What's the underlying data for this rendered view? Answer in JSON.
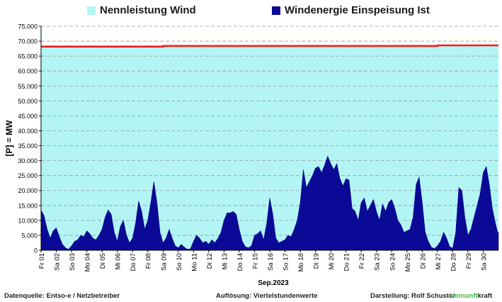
{
  "chart_data": {
    "type": "area",
    "ylabel": "[P] = MW",
    "xlabel": "Sep.2023",
    "ylim": [
      0,
      75000
    ],
    "y_ticks": [
      "0",
      "5.000",
      "10.000",
      "15.000",
      "20.000",
      "25.000",
      "30.000",
      "35.000",
      "40.000",
      "45.000",
      "50.000",
      "55.000",
      "60.000",
      "65.000",
      "70.000",
      "75.000"
    ],
    "x_tick_labels": [
      "Fr 01",
      "Sa 02",
      "So 03",
      "Mo 04",
      "Di 05",
      "Mi 06",
      "Do 07",
      "Fr 08",
      "Sa 09",
      "So 10",
      "Mo 11",
      "Di 12",
      "Mi 13",
      "Do 14",
      "Fr 15",
      "Sa 16",
      "So 17",
      "Mo 18",
      "Di 19",
      "Mi 20",
      "Do 21",
      "Fr 22",
      "Sa 23",
      "So 24",
      "Mo 25",
      "Di 26",
      "Mi 27",
      "Do 28",
      "Fr 29",
      "Sa 30"
    ],
    "xlim_days": [
      1,
      31
    ],
    "grid": true,
    "legend_position": "top",
    "series": [
      {
        "name": "Nennleistung Wind",
        "color": "#b3f5f5",
        "line_color": "#ff1a1a",
        "points": [
          [
            1,
            68200
          ],
          [
            9,
            68200
          ],
          [
            9,
            68400
          ],
          [
            27,
            68400
          ],
          [
            27,
            68600
          ],
          [
            31,
            68600
          ]
        ]
      },
      {
        "name": "Windenergie Einspeisung Ist",
        "color": "#0a0a96",
        "points": [
          [
            1.0,
            13500
          ],
          [
            1.2,
            11500
          ],
          [
            1.4,
            7000
          ],
          [
            1.6,
            4000
          ],
          [
            1.8,
            6500
          ],
          [
            2.0,
            7500
          ],
          [
            2.2,
            4500
          ],
          [
            2.4,
            2000
          ],
          [
            2.6,
            800
          ],
          [
            2.8,
            300
          ],
          [
            3.0,
            1500
          ],
          [
            3.2,
            3000
          ],
          [
            3.4,
            3500
          ],
          [
            3.6,
            5000
          ],
          [
            3.8,
            4500
          ],
          [
            4.0,
            6500
          ],
          [
            4.2,
            5500
          ],
          [
            4.4,
            4000
          ],
          [
            4.6,
            3500
          ],
          [
            4.8,
            5000
          ],
          [
            5.0,
            7000
          ],
          [
            5.2,
            11000
          ],
          [
            5.4,
            13500
          ],
          [
            5.6,
            12000
          ],
          [
            5.8,
            6000
          ],
          [
            6.0,
            3000
          ],
          [
            6.2,
            8000
          ],
          [
            6.4,
            10000
          ],
          [
            6.6,
            5000
          ],
          [
            6.8,
            2500
          ],
          [
            7.0,
            4000
          ],
          [
            7.2,
            9000
          ],
          [
            7.4,
            16500
          ],
          [
            7.6,
            13000
          ],
          [
            7.8,
            7000
          ],
          [
            8.0,
            10000
          ],
          [
            8.2,
            16000
          ],
          [
            8.4,
            23000
          ],
          [
            8.6,
            16000
          ],
          [
            8.8,
            6000
          ],
          [
            9.0,
            2500
          ],
          [
            9.2,
            4000
          ],
          [
            9.4,
            7000
          ],
          [
            9.6,
            4000
          ],
          [
            9.8,
            1500
          ],
          [
            10.0,
            800
          ],
          [
            10.2,
            2000
          ],
          [
            10.4,
            1000
          ],
          [
            10.6,
            300
          ],
          [
            10.8,
            500
          ],
          [
            11.0,
            3000
          ],
          [
            11.2,
            5000
          ],
          [
            11.4,
            4000
          ],
          [
            11.6,
            2500
          ],
          [
            11.8,
            3000
          ],
          [
            12.0,
            2000
          ],
          [
            12.2,
            3500
          ],
          [
            12.4,
            2500
          ],
          [
            12.6,
            4000
          ],
          [
            12.8,
            6000
          ],
          [
            13.0,
            10000
          ],
          [
            13.2,
            12500
          ],
          [
            13.4,
            12500
          ],
          [
            13.6,
            13000
          ],
          [
            13.8,
            12000
          ],
          [
            14.0,
            7000
          ],
          [
            14.2,
            3000
          ],
          [
            14.4,
            1200
          ],
          [
            14.6,
            800
          ],
          [
            14.8,
            1500
          ],
          [
            15.0,
            5000
          ],
          [
            15.2,
            5500
          ],
          [
            15.4,
            6500
          ],
          [
            15.6,
            3500
          ],
          [
            15.8,
            9000
          ],
          [
            16.0,
            17500
          ],
          [
            16.2,
            12000
          ],
          [
            16.4,
            4000
          ],
          [
            16.6,
            2500
          ],
          [
            16.8,
            3000
          ],
          [
            17.0,
            3500
          ],
          [
            17.2,
            5000
          ],
          [
            17.4,
            4500
          ],
          [
            17.6,
            7000
          ],
          [
            17.8,
            10000
          ],
          [
            18.0,
            16000
          ],
          [
            18.2,
            27000
          ],
          [
            18.4,
            21000
          ],
          [
            18.6,
            23000
          ],
          [
            18.8,
            25000
          ],
          [
            19.0,
            27500
          ],
          [
            19.2,
            28000
          ],
          [
            19.4,
            26000
          ],
          [
            19.6,
            28500
          ],
          [
            19.8,
            31500
          ],
          [
            20.0,
            29000
          ],
          [
            20.2,
            27000
          ],
          [
            20.4,
            29000
          ],
          [
            20.6,
            24000
          ],
          [
            20.8,
            21500
          ],
          [
            21.0,
            24000
          ],
          [
            21.2,
            23500
          ],
          [
            21.4,
            14000
          ],
          [
            21.6,
            13000
          ],
          [
            21.8,
            10000
          ],
          [
            22.0,
            16000
          ],
          [
            22.2,
            17500
          ],
          [
            22.4,
            13000
          ],
          [
            22.6,
            15000
          ],
          [
            22.8,
            17000
          ],
          [
            23.0,
            13000
          ],
          [
            23.2,
            10000
          ],
          [
            23.4,
            15500
          ],
          [
            23.6,
            13000
          ],
          [
            23.8,
            16000
          ],
          [
            24.0,
            17000
          ],
          [
            24.2,
            14000
          ],
          [
            24.4,
            10000
          ],
          [
            24.6,
            8500
          ],
          [
            24.8,
            6000
          ],
          [
            25.0,
            6500
          ],
          [
            25.2,
            7000
          ],
          [
            25.4,
            11000
          ],
          [
            25.6,
            22000
          ],
          [
            25.8,
            24500
          ],
          [
            26.0,
            16000
          ],
          [
            26.2,
            6000
          ],
          [
            26.4,
            3000
          ],
          [
            26.6,
            1000
          ],
          [
            26.8,
            500
          ],
          [
            27.0,
            1500
          ],
          [
            27.2,
            3000
          ],
          [
            27.4,
            6000
          ],
          [
            27.6,
            4000
          ],
          [
            27.8,
            1200
          ],
          [
            28.0,
            700
          ],
          [
            28.2,
            6000
          ],
          [
            28.4,
            21000
          ],
          [
            28.6,
            20000
          ],
          [
            28.8,
            11000
          ],
          [
            29.0,
            5000
          ],
          [
            29.2,
            7000
          ],
          [
            29.4,
            11000
          ],
          [
            29.6,
            15000
          ],
          [
            29.8,
            19000
          ],
          [
            30.0,
            26000
          ],
          [
            30.2,
            28000
          ],
          [
            30.4,
            22000
          ],
          [
            30.6,
            14000
          ],
          [
            30.8,
            9000
          ],
          [
            30.95,
            6000
          ],
          [
            31.0,
            6000
          ]
        ]
      }
    ]
  },
  "footer": {
    "source": "Datenquelle:  Entso-e  / Netzbetreiber",
    "resolution": "Auflösung: Viertelstundenwerte",
    "author": "Darstellung:  Rolf Schuster",
    "brand_green": "Vernunft",
    "brand_dark": "kraft"
  }
}
